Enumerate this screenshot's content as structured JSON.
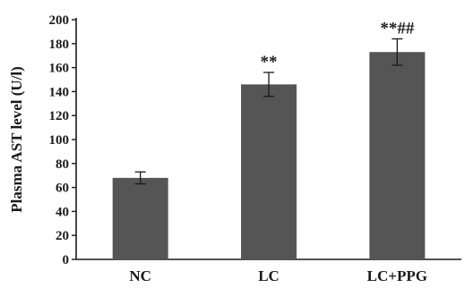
{
  "chart_data": {
    "type": "bar",
    "categories": [
      "NC",
      "LC",
      "LC+PPG"
    ],
    "values": [
      68,
      146,
      173
    ],
    "errors": [
      5,
      10,
      11
    ],
    "annotations": [
      "",
      "**",
      "**##"
    ],
    "xlabel": "",
    "ylabel": "Plasma AST level (U/l)",
    "ylim": [
      0,
      200
    ],
    "yticks": [
      0,
      20,
      40,
      60,
      80,
      100,
      120,
      140,
      160,
      180,
      200
    ],
    "bar_color": "#555555",
    "grid": false,
    "legend": "none"
  }
}
